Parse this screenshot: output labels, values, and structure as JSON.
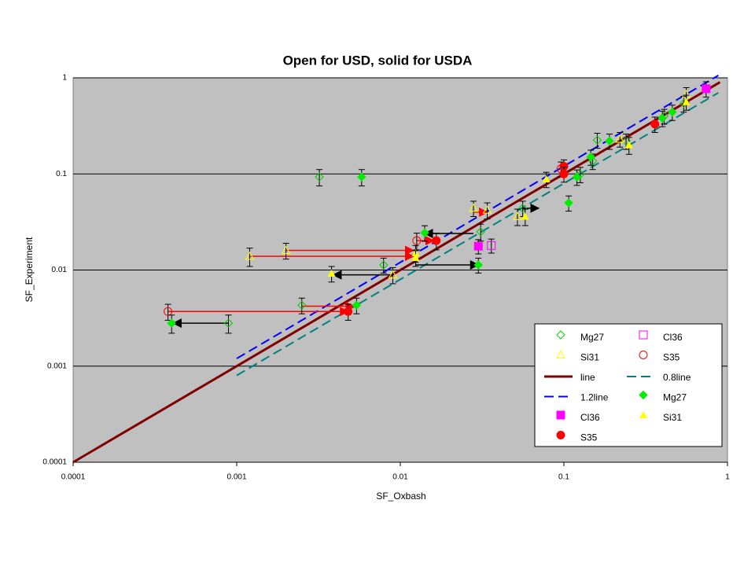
{
  "chart_data": {
    "type": "scatter",
    "title": "Open for USD, solid for USDA",
    "x_label": "SF_Oxbash",
    "y_label": "SF_Experiment",
    "xscale": "log",
    "yscale": "log",
    "grid": true,
    "legend": "lower right",
    "xlim": [
      0.0001,
      1
    ],
    "ylim": [
      0.0001,
      1
    ],
    "xticks": [
      0.0001,
      0.001,
      0.01,
      0.1,
      1
    ],
    "yticks": [
      0.0001,
      0.001,
      0.01,
      0.1,
      1
    ],
    "series": [
      {
        "name": "Mg27",
        "color": "#00cc00",
        "marker": "diamond",
        "filled": false,
        "x": [
          0.00089,
          0.0032,
          0.0025,
          0.0079,
          0.031,
          0.056,
          0.126,
          0.15,
          0.16,
          0.24,
          0.41,
          0.54
        ],
        "values": [
          0.0028,
          0.093,
          0.0043,
          0.0113,
          0.025,
          0.044,
          0.099,
          0.136,
          0.225,
          0.22,
          0.4,
          0.54
        ],
        "errors": [
          0.0006,
          0.018,
          0.0008,
          0.002,
          0.005,
          0.008,
          0.018,
          0.025,
          0.04,
          0.04,
          0.07,
          0.1
        ]
      },
      {
        "name": "Cl36",
        "color": "#ff00ff",
        "marker": "square",
        "filled": false,
        "x": [
          0.036
        ],
        "values": [
          0.018
        ],
        "errors": [
          0.003
        ]
      },
      {
        "name": "Si31",
        "color": "#ffff00",
        "marker": "triangle",
        "filled": false,
        "x": [
          0.0012,
          0.002,
          0.009,
          0.028,
          0.034,
          0.052,
          0.22,
          0.56
        ],
        "values": [
          0.0139,
          0.016,
          0.0089,
          0.044,
          0.042,
          0.036,
          0.23,
          0.67
        ],
        "errors": [
          0.003,
          0.003,
          0.0017,
          0.008,
          0.008,
          0.007,
          0.04,
          0.12
        ]
      },
      {
        "name": "S35",
        "color": "#ff0000",
        "marker": "circle",
        "filled": false,
        "x": [
          0.00038,
          0.0126,
          0.096
        ],
        "values": [
          0.0037,
          0.0202,
          0.113
        ],
        "errors": [
          0.0007,
          0.004,
          0.02
        ]
      },
      {
        "name": "line",
        "color": "#800000",
        "line": "solid",
        "x": [
          0.0001,
          0.9
        ],
        "values": [
          0.0001,
          0.9
        ]
      },
      {
        "name": "0.8line",
        "color": "#008080",
        "line": "dashed",
        "x": [
          0.001,
          0.88
        ],
        "values": [
          0.0008,
          0.7
        ]
      },
      {
        "name": "1.2line",
        "color": "#0000ff",
        "line": "dashed",
        "x": [
          0.001,
          0.88
        ],
        "values": [
          0.0012,
          1.06
        ]
      },
      {
        "name": "Mg27",
        "color": "#00ee00",
        "marker": "diamond",
        "filled": true,
        "x": [
          0.0004,
          0.0058,
          0.0054,
          0.0141,
          0.03,
          0.107,
          0.12,
          0.146,
          0.19,
          0.4,
          0.46
        ],
        "values": [
          0.0028,
          0.093,
          0.0043,
          0.0244,
          0.0113,
          0.05,
          0.093,
          0.15,
          0.22,
          0.38,
          0.44
        ],
        "errors": [
          0.0006,
          0.018,
          0.0008,
          0.0045,
          0.002,
          0.009,
          0.017,
          0.027,
          0.04,
          0.07,
          0.08
        ]
      },
      {
        "name": "Cl36",
        "color": "#ff00ff",
        "marker": "square",
        "filled": true,
        "x": [
          0.03,
          0.74
        ],
        "values": [
          0.0177,
          0.77
        ],
        "errors": [
          0.003,
          0.14
        ]
      },
      {
        "name": "Si31",
        "color": "#ffff00",
        "marker": "triangle",
        "filled": true,
        "x": [
          0.0038,
          0.0124,
          0.0124,
          0.058,
          0.078,
          0.25,
          0.56
        ],
        "values": [
          0.0092,
          0.015,
          0.0134,
          0.036,
          0.088,
          0.2,
          0.56
        ],
        "errors": [
          0.0017,
          0.003,
          0.0025,
          0.007,
          0.016,
          0.04,
          0.1
        ]
      },
      {
        "name": "S35",
        "color": "#ff0000",
        "marker": "circle",
        "filled": true,
        "x": [
          0.0048,
          0.0166,
          0.1,
          0.1,
          0.36
        ],
        "values": [
          0.0037,
          0.0202,
          0.12,
          0.1,
          0.33
        ],
        "errors": [
          0.0007,
          0.004,
          0.02,
          0.018,
          0.06
        ]
      }
    ],
    "arrows": [
      {
        "x": [
          0.00089,
          0.00041
        ],
        "y": 0.0028,
        "color": "#000000"
      },
      {
        "x": [
          0.00038,
          0.0048
        ],
        "y": 0.0037,
        "color": "#ff0000"
      },
      {
        "x": [
          0.0025,
          0.0052
        ],
        "y": 0.0042,
        "color": "#ff0000"
      },
      {
        "x": [
          0.009,
          0.0039
        ],
        "y": 0.0089,
        "color": "#000000"
      },
      {
        "x": [
          0.0124,
          0.03
        ],
        "y": 0.0113,
        "color": "#000000"
      },
      {
        "x": [
          0.0012,
          0.012
        ],
        "y": 0.0139,
        "color": "#ff0000"
      },
      {
        "x": [
          0.002,
          0.012
        ],
        "y": 0.016,
        "color": "#ff0000"
      },
      {
        "x": [
          0.0126,
          0.016
        ],
        "y": 0.0202,
        "color": "#ff0000"
      },
      {
        "x": [
          0.028,
          0.0141
        ],
        "y": 0.024,
        "color": "#000000"
      },
      {
        "x": [
          0.028,
          0.034
        ],
        "y": 0.04,
        "color": "#ff0000"
      },
      {
        "x": [
          0.056,
          0.07
        ],
        "y": 0.044,
        "color": "#000000"
      }
    ]
  }
}
